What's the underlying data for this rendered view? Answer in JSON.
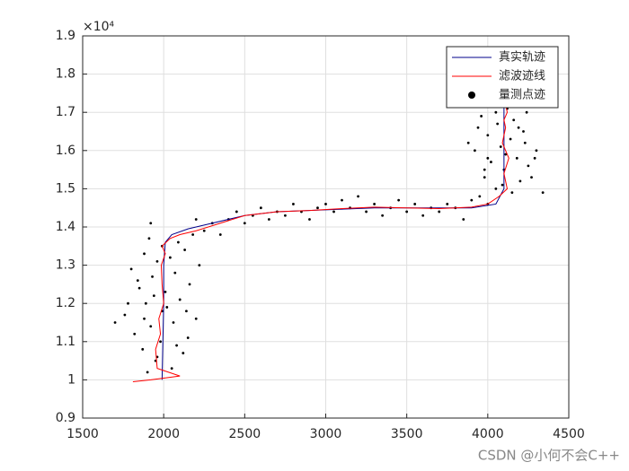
{
  "chart_data": {
    "type": "line",
    "y_exponent": "×10⁴",
    "xlim": [
      1500,
      4500
    ],
    "xticks": [
      1500,
      2000,
      2500,
      3000,
      3500,
      4000,
      4500
    ],
    "ylim": [
      0.9,
      1.9
    ],
    "yticks": [
      0.9,
      1,
      1.1,
      1.2,
      1.3,
      1.4,
      1.5,
      1.6,
      1.7,
      1.8,
      1.9
    ],
    "grid": true,
    "legend": "upper right",
    "series": [
      {
        "name": "真实轨迹",
        "type": "line",
        "color": "#00008b",
        "x": [
          1990,
          2000,
          2000,
          2010,
          2050,
          2150,
          2300,
          2500,
          2700,
          3000,
          3300,
          3600,
          3900,
          4050,
          4100,
          4100,
          4100
        ],
        "values": [
          1.0,
          1.2,
          1.3,
          1.36,
          1.38,
          1.395,
          1.41,
          1.43,
          1.44,
          1.445,
          1.45,
          1.45,
          1.45,
          1.46,
          1.5,
          1.6,
          1.72
        ]
      },
      {
        "name": "滤波迹线",
        "type": "line",
        "color": "#ff0000",
        "x": [
          1810,
          1920,
          2100,
          1960,
          1950,
          1980,
          1970,
          2000,
          1990,
          1985,
          2010,
          1990,
          2040,
          2100,
          2200,
          2350,
          2500,
          2700,
          2900,
          3100,
          3300,
          3500,
          3700,
          3900,
          4000,
          4070,
          4120,
          4100,
          4130,
          4090,
          4110,
          4100,
          4120,
          4110
        ],
        "values": [
          0.995,
          1.0,
          1.01,
          1.03,
          1.08,
          1.12,
          1.16,
          1.2,
          1.25,
          1.3,
          1.33,
          1.35,
          1.37,
          1.38,
          1.39,
          1.41,
          1.43,
          1.44,
          1.443,
          1.448,
          1.452,
          1.45,
          1.448,
          1.452,
          1.46,
          1.48,
          1.5,
          1.54,
          1.58,
          1.62,
          1.66,
          1.68,
          1.7,
          1.72
        ]
      },
      {
        "name": "量测点迹",
        "type": "scatter",
        "color": "#000000",
        "x": [
          1900,
          1950,
          2050,
          1870,
          2120,
          1980,
          1820,
          2150,
          1920,
          2060,
          1760,
          2200,
          1990,
          1890,
          2100,
          1700,
          2010,
          1850,
          2160,
          1930,
          2070,
          1800,
          2220,
          1960,
          2040,
          1880,
          2130,
          1990,
          2090,
          1910,
          2180,
          1840,
          2020,
          1960,
          2080,
          1940,
          2140,
          1880,
          1920,
          1780,
          2250,
          2300,
          2350,
          2400,
          2450,
          2500,
          2550,
          2600,
          2650,
          2700,
          2750,
          2800,
          2850,
          2900,
          2950,
          3000,
          3050,
          3100,
          3150,
          3200,
          3250,
          3300,
          3350,
          3400,
          3450,
          3500,
          3550,
          3600,
          3650,
          3700,
          3750,
          3800,
          3850,
          3900,
          2200,
          3950,
          4000,
          4050,
          4150,
          4200,
          3980,
          4100,
          4250,
          4020,
          4180,
          3920,
          4080,
          4300,
          4140,
          4000,
          4220,
          4060,
          4160,
          3960,
          4240,
          4120,
          4030,
          4190,
          4340,
          3880,
          4270,
          4090,
          4000,
          4170,
          4110,
          3940,
          4230,
          4050,
          3980,
          4290
        ],
        "values": [
          1.02,
          1.05,
          1.03,
          1.08,
          1.07,
          1.1,
          1.12,
          1.11,
          1.14,
          1.15,
          1.17,
          1.16,
          1.18,
          1.2,
          1.21,
          1.15,
          1.23,
          1.24,
          1.25,
          1.27,
          1.28,
          1.29,
          1.3,
          1.31,
          1.32,
          1.33,
          1.34,
          1.35,
          1.36,
          1.37,
          1.38,
          1.26,
          1.19,
          1.06,
          1.09,
          1.22,
          1.18,
          1.16,
          1.41,
          1.2,
          1.39,
          1.41,
          1.38,
          1.42,
          1.44,
          1.41,
          1.43,
          1.45,
          1.42,
          1.44,
          1.43,
          1.46,
          1.44,
          1.42,
          1.45,
          1.46,
          1.44,
          1.47,
          1.45,
          1.48,
          1.44,
          1.46,
          1.43,
          1.45,
          1.47,
          1.44,
          1.46,
          1.43,
          1.45,
          1.44,
          1.46,
          1.45,
          1.42,
          1.47,
          1.42,
          1.48,
          1.46,
          1.5,
          1.49,
          1.52,
          1.53,
          1.55,
          1.56,
          1.57,
          1.58,
          1.6,
          1.61,
          1.6,
          1.63,
          1.64,
          1.65,
          1.67,
          1.68,
          1.69,
          1.7,
          1.71,
          1.72,
          1.66,
          1.49,
          1.62,
          1.53,
          1.51,
          1.58,
          1.74,
          1.59,
          1.66,
          1.62,
          1.7,
          1.55,
          1.58
        ]
      }
    ]
  },
  "watermark": "CSDN @小何不会C++"
}
